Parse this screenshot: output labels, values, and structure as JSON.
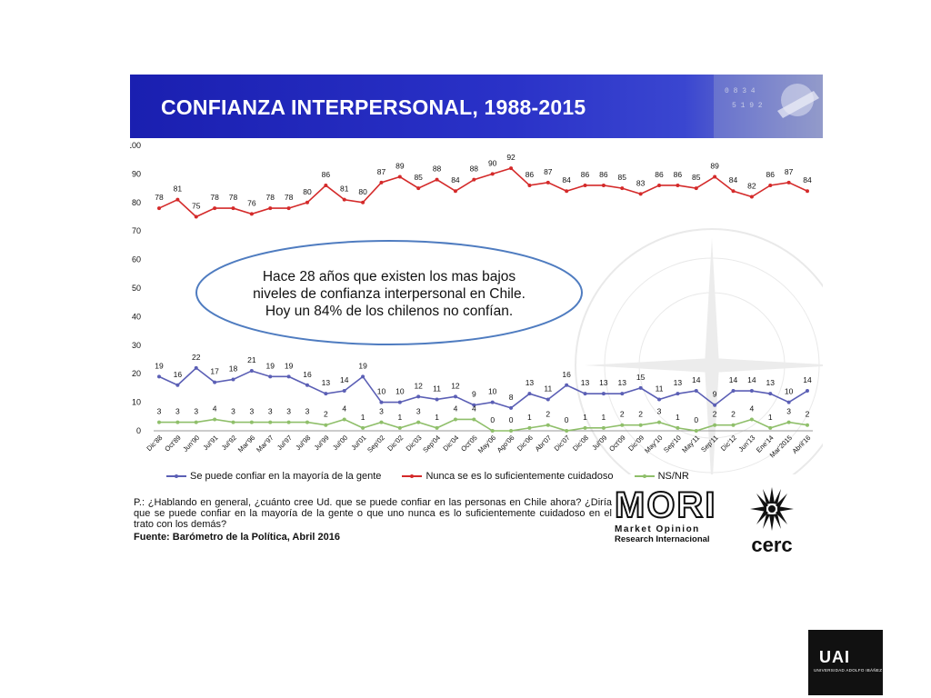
{
  "slide": {
    "title": "CONFIANZA INTERPERSONAL, 1988-2015",
    "callout_lines": [
      "Hace 28 años que existen los mas bajos",
      "niveles de confianza interpersonal en Chile.",
      "Hoy un 84% de los chilenos no confían."
    ],
    "question": "P.: ¿Hablando en general, ¿cuánto cree Ud. que se puede confiar en las personas en Chile ahora? ¿Diría que se puede confiar en la mayoría de la gente o que uno nunca es lo suficientemente cuidadoso en el trato con los demás?",
    "source": "Fuente:  Barómetro de la Política, Abril 2016",
    "mori": {
      "word": "MORI",
      "line1": "Market Opinion",
      "line2": "Research Internacional"
    },
    "cerc": {
      "word": "cerc"
    }
  },
  "uai": {
    "word": "UAI",
    "sub": "UNIVERSIDAD ADOLFO IBÁÑEZ"
  },
  "colors": {
    "banner": "#2a32c8",
    "nunca": "#d42a2a",
    "confiar": "#5b5fb5",
    "nsnr": "#8fbf6a",
    "callout_border": "#4f7cc0"
  },
  "chart_data": {
    "type": "line",
    "title": "",
    "xlabel": "",
    "ylabel": "",
    "ylim": [
      0,
      100
    ],
    "yticks": [
      0,
      10,
      20,
      30,
      40,
      50,
      60,
      70,
      80,
      90,
      100
    ],
    "grid": false,
    "legend_position": "bottom",
    "x": [
      "Dic'88",
      "Oct'89",
      "Jun'90",
      "Jul'91",
      "Jul'92",
      "Mar'96",
      "Mar'97",
      "Jul'97",
      "Jul'98",
      "Jul'99",
      "Jul'00",
      "Jul'01",
      "Sep'02",
      "Dic'02",
      "Dic'03",
      "Sep'04",
      "Dic'04",
      "Oct'05",
      "May'06",
      "Ago'06",
      "Dic'06",
      "Abr'07",
      "Dic'07",
      "Dic'08",
      "Jul'09",
      "Oct'09",
      "Dic'09",
      "May'10",
      "Sep'10",
      "May'11",
      "Sep'11",
      "Dic'12",
      "Jun'13",
      "Ene'14",
      "Mar'2015",
      "Abril'16"
    ],
    "series": [
      {
        "name": "Se puede confiar en  la mayoría de la gente",
        "color": "#5b5fb5",
        "values": [
          19,
          16,
          22,
          17,
          18,
          21,
          19,
          19,
          16,
          13,
          14,
          19,
          10,
          10,
          12,
          11,
          12,
          9,
          10,
          8,
          13,
          11,
          16,
          13,
          13,
          13,
          15,
          11,
          13,
          14,
          9,
          14,
          14,
          13,
          10,
          14
        ]
      },
      {
        "name": "Nunca se es lo suficientemente cuidadoso",
        "color": "#d42a2a",
        "values": [
          78,
          81,
          75,
          78,
          78,
          76,
          78,
          78,
          80,
          86,
          81,
          80,
          87,
          89,
          85,
          88,
          84,
          88,
          90,
          92,
          86,
          87,
          84,
          86,
          86,
          85,
          83,
          86,
          86,
          85,
          89,
          84,
          82,
          86,
          87,
          84
        ]
      },
      {
        "name": "NS/NR",
        "color": "#8fbf6a",
        "values": [
          3,
          3,
          3,
          4,
          3,
          3,
          3,
          3,
          3,
          2,
          4,
          1,
          3,
          1,
          3,
          1,
          4,
          4,
          0,
          0,
          1,
          2,
          0,
          1,
          1,
          2,
          2,
          3,
          1,
          0,
          2,
          2,
          4,
          1,
          3,
          2
        ]
      }
    ]
  }
}
